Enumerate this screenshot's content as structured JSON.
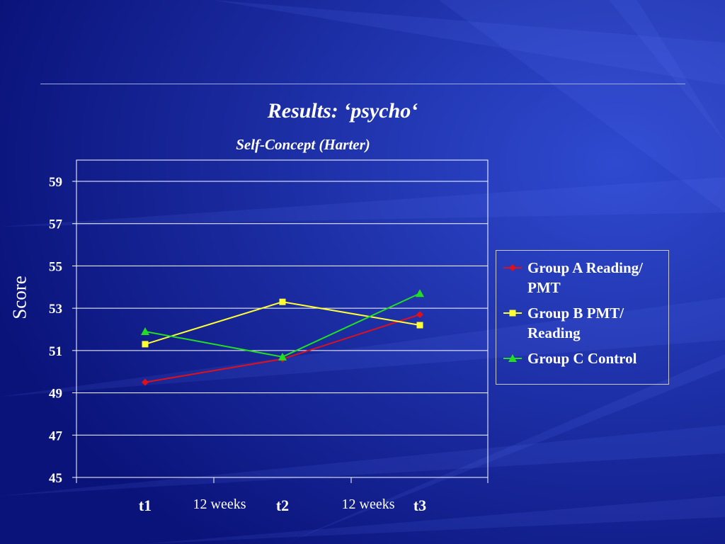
{
  "slide": {
    "title": "Results: ‘psycho‘"
  },
  "chart_data": {
    "type": "line",
    "title": "Self-Concept (Harter)",
    "ylabel": "Score",
    "ylim": [
      45,
      60
    ],
    "yticks": [
      "45",
      "47",
      "49",
      "51",
      "53",
      "55",
      "57",
      "59"
    ],
    "categories": [
      "t1",
      "t2",
      "t3"
    ],
    "between_labels": [
      "12 weeks",
      "12 weeks"
    ],
    "grid": true,
    "legend_position": "right",
    "series": [
      {
        "name": "Group A Reading/ PMT",
        "name_lines": [
          "Group A Reading/",
          "PMT"
        ],
        "color": "#e0101a",
        "marker": "diamond",
        "values": [
          49.5,
          50.6,
          52.7
        ]
      },
      {
        "name": "Group B PMT/ Reading",
        "name_lines": [
          "Group B PMT/",
          "Reading"
        ],
        "color": "#ffff33",
        "marker": "square",
        "values": [
          51.3,
          53.3,
          52.2
        ]
      },
      {
        "name": "Group C Control",
        "name_lines": [
          "Group C Control"
        ],
        "color": "#22dd22",
        "marker": "triangle",
        "values": [
          51.9,
          50.7,
          53.7
        ]
      }
    ]
  }
}
